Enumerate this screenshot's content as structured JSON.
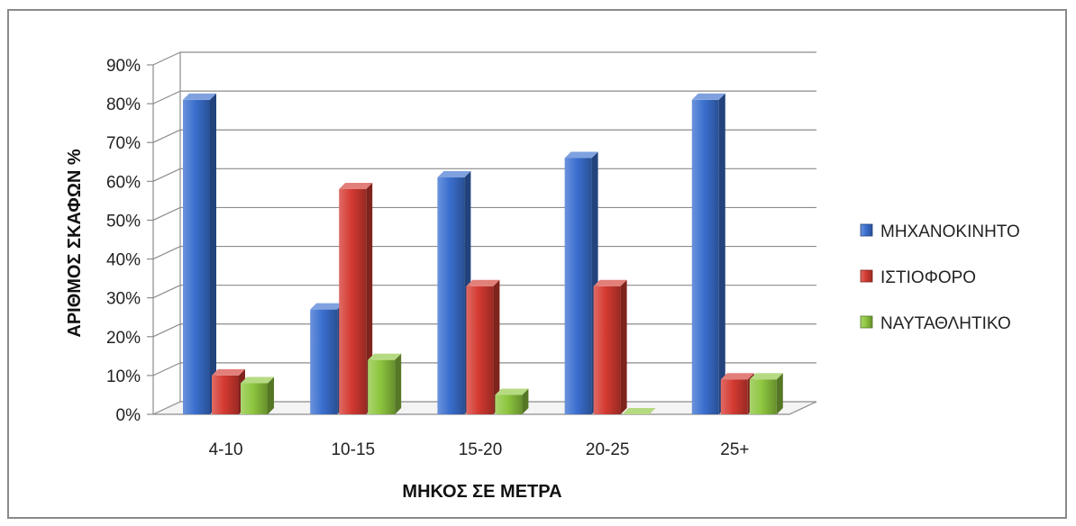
{
  "chart_data": {
    "type": "bar",
    "title": "",
    "xlabel": "ΜΗΚΟΣ ΣΕ ΜΕΤΡΑ",
    "ylabel": "ΑΡΙΘΜΟΣ ΣΚΑΦΩΝ %",
    "categories": [
      "4-10",
      "10-15",
      "15-20",
      "20-25",
      "25+"
    ],
    "yticks": [
      "0%",
      "10%",
      "20%",
      "30%",
      "40%",
      "50%",
      "60%",
      "70%",
      "80%",
      "90%"
    ],
    "ylim": [
      0,
      90
    ],
    "grid": true,
    "legend_position": "right",
    "series": [
      {
        "name": "ΜΗΧΑΝΟΚΙΝΗΤΟ",
        "values": [
          81,
          27,
          61,
          66,
          81
        ],
        "color": "#3a6fcf"
      },
      {
        "name": "ΙΣΤΙΟΦΟΡΟ",
        "values": [
          10,
          58,
          33,
          33,
          9
        ],
        "color": "#d43a31"
      },
      {
        "name": "ΝΑΥΤΑΘΛΗΤΙΚΟ",
        "values": [
          8,
          14,
          5,
          0,
          9
        ],
        "color": "#8ec63f"
      }
    ]
  }
}
